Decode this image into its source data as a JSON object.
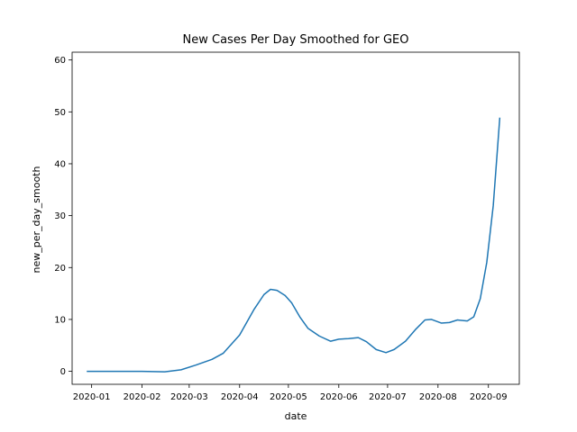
{
  "chart_data": {
    "type": "line",
    "title": "New Cases Per Day Smoothed for GEO",
    "xlabel": "date",
    "ylabel": "new_per_day_smooth",
    "x_axis_type": "date",
    "xlim": [
      "2019-12-20",
      "2020-09-20"
    ],
    "ylim": [
      -2.5,
      61.5
    ],
    "grid": false,
    "legend": "none",
    "x_ticks": [
      {
        "value": "2020-01-01",
        "label": "2020-01"
      },
      {
        "value": "2020-02-01",
        "label": "2020-02"
      },
      {
        "value": "2020-03-01",
        "label": "2020-03"
      },
      {
        "value": "2020-04-01",
        "label": "2020-04"
      },
      {
        "value": "2020-05-01",
        "label": "2020-05"
      },
      {
        "value": "2020-06-01",
        "label": "2020-06"
      },
      {
        "value": "2020-07-01",
        "label": "2020-07"
      },
      {
        "value": "2020-08-01",
        "label": "2020-08"
      },
      {
        "value": "2020-09-01",
        "label": "2020-09"
      }
    ],
    "y_ticks": [
      0,
      10,
      20,
      30,
      40,
      50,
      60
    ],
    "series": [
      {
        "color": "#1f77b4",
        "points": [
          {
            "x": "2019-12-29",
            "y": 0.0
          },
          {
            "x": "2020-01-15",
            "y": 0.0
          },
          {
            "x": "2020-02-01",
            "y": 0.0
          },
          {
            "x": "2020-02-15",
            "y": -0.1
          },
          {
            "x": "2020-02-25",
            "y": 0.3
          },
          {
            "x": "2020-03-05",
            "y": 1.2
          },
          {
            "x": "2020-03-15",
            "y": 2.3
          },
          {
            "x": "2020-03-22",
            "y": 3.5
          },
          {
            "x": "2020-04-01",
            "y": 7.0
          },
          {
            "x": "2020-04-10",
            "y": 12.0
          },
          {
            "x": "2020-04-16",
            "y": 14.8
          },
          {
            "x": "2020-04-20",
            "y": 15.8
          },
          {
            "x": "2020-04-24",
            "y": 15.6
          },
          {
            "x": "2020-04-29",
            "y": 14.6
          },
          {
            "x": "2020-05-03",
            "y": 13.2
          },
          {
            "x": "2020-05-08",
            "y": 10.5
          },
          {
            "x": "2020-05-13",
            "y": 8.3
          },
          {
            "x": "2020-05-20",
            "y": 6.8
          },
          {
            "x": "2020-05-27",
            "y": 5.8
          },
          {
            "x": "2020-06-01",
            "y": 6.2
          },
          {
            "x": "2020-06-07",
            "y": 6.3
          },
          {
            "x": "2020-06-13",
            "y": 6.5
          },
          {
            "x": "2020-06-18",
            "y": 5.7
          },
          {
            "x": "2020-06-24",
            "y": 4.2
          },
          {
            "x": "2020-06-30",
            "y": 3.6
          },
          {
            "x": "2020-07-05",
            "y": 4.2
          },
          {
            "x": "2020-07-12",
            "y": 5.8
          },
          {
            "x": "2020-07-18",
            "y": 8.0
          },
          {
            "x": "2020-07-24",
            "y": 9.9
          },
          {
            "x": "2020-07-28",
            "y": 10.0
          },
          {
            "x": "2020-08-03",
            "y": 9.3
          },
          {
            "x": "2020-08-08",
            "y": 9.4
          },
          {
            "x": "2020-08-13",
            "y": 9.9
          },
          {
            "x": "2020-08-19",
            "y": 9.7
          },
          {
            "x": "2020-08-23",
            "y": 10.5
          },
          {
            "x": "2020-08-27",
            "y": 14.0
          },
          {
            "x": "2020-08-31",
            "y": 21.0
          },
          {
            "x": "2020-09-04",
            "y": 32.0
          },
          {
            "x": "2020-09-08",
            "y": 48.9
          }
        ]
      }
    ]
  }
}
